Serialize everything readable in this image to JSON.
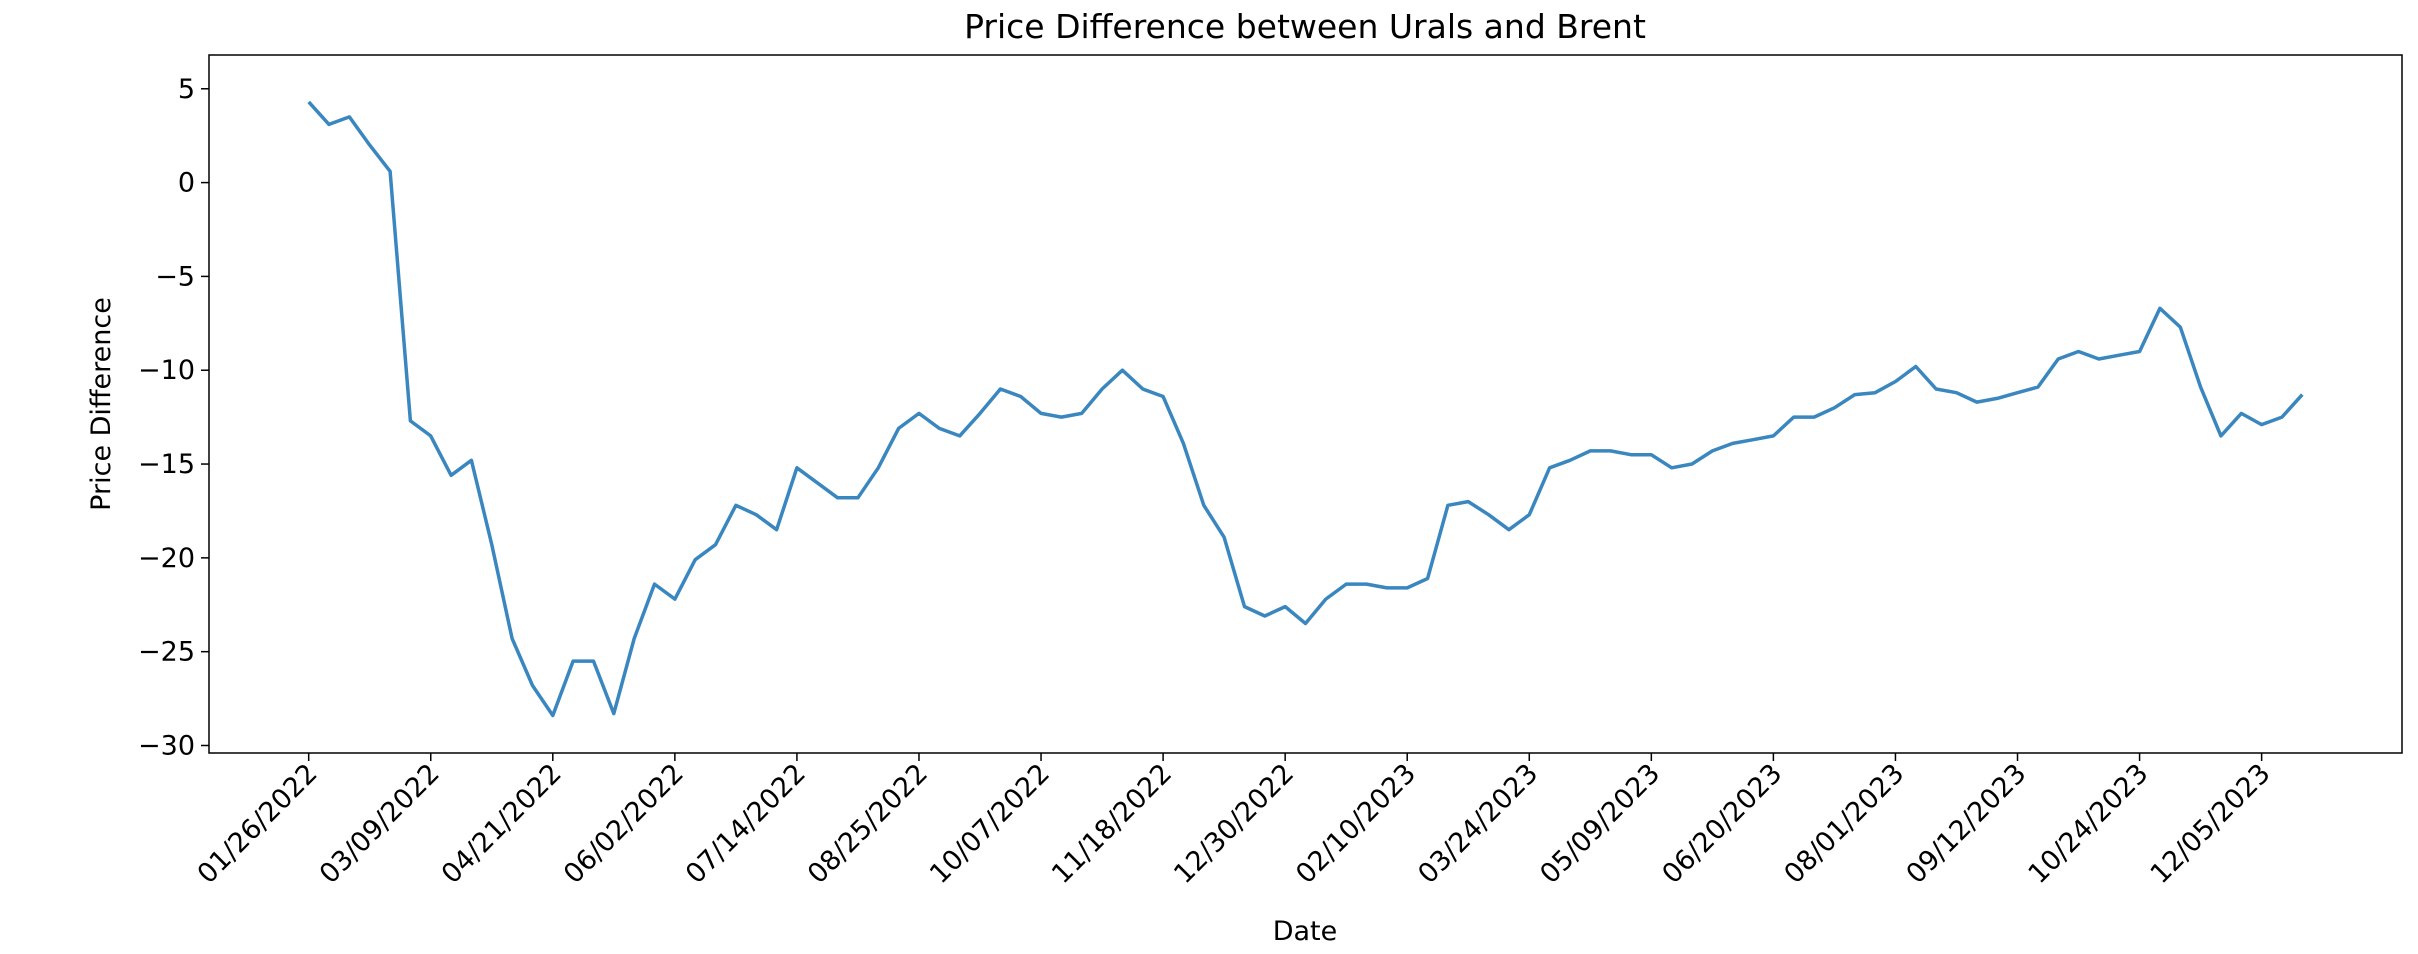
{
  "chart_data": {
    "type": "line",
    "title": "Price Difference between Urals and Brent",
    "x_label": "Date",
    "y_label": "Price Difference",
    "categories": [
      "01/26/2022",
      null,
      null,
      null,
      null,
      null,
      "03/09/2022",
      null,
      null,
      null,
      null,
      null,
      "04/21/2022",
      null,
      null,
      null,
      null,
      null,
      "06/02/2022",
      null,
      null,
      null,
      null,
      null,
      "07/14/2022",
      null,
      null,
      null,
      null,
      null,
      "08/25/2022",
      null,
      null,
      null,
      null,
      null,
      "10/07/2022",
      null,
      null,
      null,
      null,
      null,
      "11/18/2022",
      null,
      null,
      null,
      null,
      null,
      "12/30/2022",
      null,
      null,
      null,
      null,
      null,
      "02/10/2023",
      null,
      null,
      null,
      null,
      null,
      "03/24/2023",
      null,
      null,
      null,
      null,
      null,
      "05/09/2023",
      null,
      null,
      null,
      null,
      null,
      "06/20/2023",
      null,
      null,
      null,
      null,
      null,
      "08/01/2023",
      null,
      null,
      null,
      null,
      null,
      "09/12/2023",
      null,
      null,
      null,
      null,
      null,
      "10/24/2023",
      null,
      null,
      null,
      null,
      null,
      "12/05/2023",
      null,
      null
    ],
    "series": [
      {
        "name": "Price Difference",
        "color": "#3a87c0",
        "values": [
          4.3,
          3.1,
          3.5,
          2.0,
          0.6,
          -12.7,
          -13.5,
          -15.6,
          -14.8,
          -19.3,
          -24.3,
          -26.8,
          -28.4,
          -25.5,
          -25.5,
          -28.3,
          -24.3,
          -21.4,
          -22.2,
          -20.1,
          -19.3,
          -17.2,
          -17.7,
          -18.5,
          -15.2,
          -16.0,
          -16.8,
          -16.8,
          -15.2,
          -13.1,
          -12.3,
          -13.1,
          -13.5,
          -12.3,
          -11.0,
          -11.4,
          -12.3,
          -12.5,
          -12.3,
          -11.0,
          -10.0,
          -11.0,
          -11.4,
          -13.9,
          -17.2,
          -18.9,
          -22.6,
          -23.1,
          -22.6,
          -23.5,
          -22.2,
          -21.4,
          -21.4,
          -21.6,
          -21.6,
          -21.1,
          -17.2,
          -17.0,
          -17.7,
          -18.5,
          -17.7,
          -15.2,
          -14.8,
          -14.3,
          -14.3,
          -14.5,
          -14.5,
          -15.2,
          -15.0,
          -14.3,
          -13.9,
          -13.7,
          -13.5,
          -12.5,
          -12.5,
          -12.0,
          -11.3,
          -11.2,
          -10.6,
          -9.8,
          -11.0,
          -11.2,
          -11.7,
          -11.5,
          -11.2,
          -10.9,
          -9.4,
          -9.0,
          -9.4,
          -9.2,
          -9.0,
          -6.7,
          -7.7,
          -10.9,
          -13.5,
          -12.3,
          -12.9,
          -12.5,
          -11.3
        ]
      }
    ],
    "ylim": [
      -30.4,
      6.8
    ],
    "yticks": [
      {
        "value": -30,
        "label": "−30"
      },
      {
        "value": -25,
        "label": "−25"
      },
      {
        "value": -20,
        "label": "−20"
      },
      {
        "value": -15,
        "label": "−15"
      },
      {
        "value": -10,
        "label": "−10"
      },
      {
        "value": -5,
        "label": "−5"
      },
      0,
      5
    ],
    "grid": false
  }
}
